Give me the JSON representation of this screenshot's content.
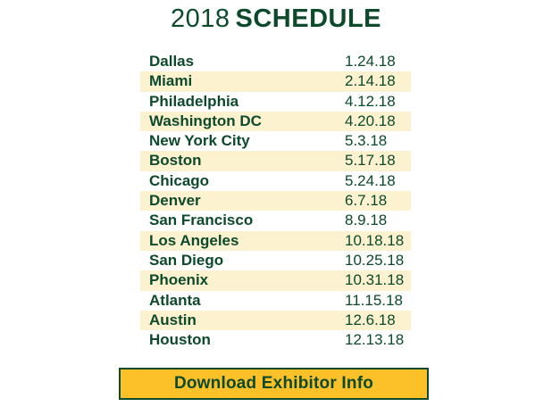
{
  "colors": {
    "text": "#0d4a2c",
    "row_stripe": "#fcf2cf",
    "button_fill": "#fcc128",
    "button_border": "#0d4a2c"
  },
  "header": {
    "year": "2018",
    "title": "SCHEDULE"
  },
  "schedule": [
    {
      "city": "Dallas",
      "date": "1.24.18"
    },
    {
      "city": "Miami",
      "date": "2.14.18"
    },
    {
      "city": "Philadelphia",
      "date": "4.12.18"
    },
    {
      "city": "Washington DC",
      "date": "4.20.18"
    },
    {
      "city": "New York City",
      "date": "5.3.18"
    },
    {
      "city": "Boston",
      "date": "5.17.18"
    },
    {
      "city": "Chicago",
      "date": "5.24.18"
    },
    {
      "city": "Denver",
      "date": "6.7.18"
    },
    {
      "city": "San Francisco",
      "date": "8.9.18"
    },
    {
      "city": "Los Angeles",
      "date": "10.18.18"
    },
    {
      "city": "San Diego",
      "date": "10.25.18"
    },
    {
      "city": "Phoenix",
      "date": "10.31.18"
    },
    {
      "city": "Atlanta",
      "date": "11.15.18"
    },
    {
      "city": "Austin",
      "date": "12.6.18"
    },
    {
      "city": "Houston",
      "date": "12.13.18"
    }
  ],
  "download": {
    "label": "Download Exhibitor Info"
  }
}
